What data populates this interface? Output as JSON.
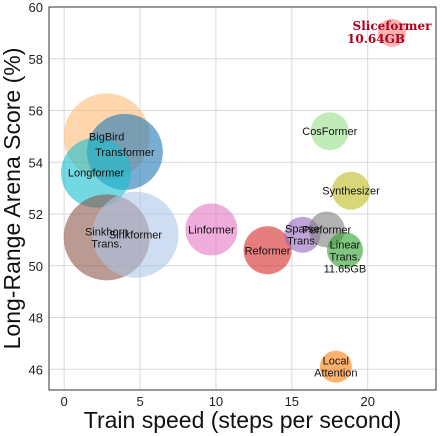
{
  "chart_data": {
    "type": "scatter",
    "xlabel": "Train speed (steps per second)",
    "ylabel": "Long-Range Arena Score (%)",
    "xlim": [
      -1,
      24.5
    ],
    "ylim": [
      45.2,
      60
    ],
    "xticks": [
      0,
      5,
      10,
      15,
      20
    ],
    "yticks": [
      46,
      48,
      50,
      52,
      54,
      56,
      58,
      60
    ],
    "grid": true,
    "points": [
      {
        "label": "BigBird",
        "x": 2.8,
        "y": 55.0,
        "r": 43,
        "color": "#ffbb78"
      },
      {
        "label": "Transformer",
        "x": 4.0,
        "y": 54.4,
        "r": 38,
        "color": "#1f77b4"
      },
      {
        "label": "Longformer",
        "x": 2.1,
        "y": 53.6,
        "r": 35,
        "color": "#17becf"
      },
      {
        "label": "Sinkhorn\nTrans.",
        "x": 2.8,
        "y": 51.1,
        "r": 43,
        "color": "#8c564b"
      },
      {
        "label": "Sinkformer",
        "x": 4.7,
        "y": 51.2,
        "r": 43,
        "color": "#aec7e8"
      },
      {
        "label": "Linformer",
        "x": 9.7,
        "y": 51.4,
        "r": 26,
        "color": "#e377c2"
      },
      {
        "label": "Reformer",
        "x": 13.4,
        "y": 50.6,
        "r": 24,
        "color": "#d62728"
      },
      {
        "label": "Sparse\nTrans.",
        "x": 15.7,
        "y": 51.2,
        "r": 18,
        "color": "#9467bd"
      },
      {
        "label": "Performer",
        "x": 17.3,
        "y": 51.4,
        "r": 18,
        "color": "#7f7f7f"
      },
      {
        "label": "Linear\nTrans.",
        "x": 18.5,
        "y": 50.6,
        "r": 18,
        "color": "#2ca02c",
        "note": "11.65GB"
      },
      {
        "label": "CosFormer",
        "x": 17.5,
        "y": 55.2,
        "r": 19,
        "color": "#98df8a"
      },
      {
        "label": "Synthesizer",
        "x": 18.9,
        "y": 52.9,
        "r": 19,
        "color": "#bcbd22"
      },
      {
        "label": "Local\nAttention",
        "x": 17.9,
        "y": 46.1,
        "r": 16,
        "color": "#ff7f0e"
      },
      {
        "label": "Sliceformer",
        "x": 21.6,
        "y": 59.0,
        "r": 14,
        "color": "#ff9896",
        "note": "10.64GB",
        "highlight": true
      }
    ]
  }
}
